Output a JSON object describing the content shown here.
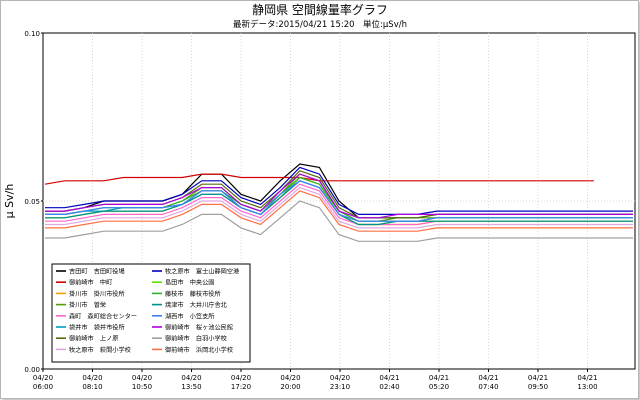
{
  "chart_data": {
    "type": "line",
    "title": "静岡県 空間線量率グラフ",
    "subtitle": "最新データ:2015/04/21 15:20　単位:μSv/h",
    "ylabel": "μ Sv/h",
    "xlabel": "",
    "ylim": [
      0.0,
      0.1
    ],
    "yticks": [
      "0.00",
      "0.05",
      "0.10"
    ],
    "xticks": [
      {
        "date": "04/20",
        "time": "06:00"
      },
      {
        "date": "04/20",
        "time": "08:10"
      },
      {
        "date": "04/20",
        "time": "10:50"
      },
      {
        "date": "04/20",
        "time": "13:50"
      },
      {
        "date": "04/20",
        "time": "17:20"
      },
      {
        "date": "04/20",
        "time": "20:00"
      },
      {
        "date": "04/20",
        "time": "23:10"
      },
      {
        "date": "04/21",
        "time": "02:40"
      },
      {
        "date": "04/21",
        "time": "05:20"
      },
      {
        "date": "04/21",
        "time": "07:40"
      },
      {
        "date": "04/21",
        "time": "09:50"
      },
      {
        "date": "04/21",
        "time": "13:00"
      }
    ],
    "grid": true,
    "legend_position": "bottom-left",
    "series": [
      {
        "name": "吉田町　吉田町役場",
        "color": "#000000",
        "values": [
          0.047,
          0.047,
          0.048,
          0.05,
          0.05,
          0.05,
          0.05,
          0.052,
          0.058,
          0.058,
          0.052,
          0.05,
          0.056,
          0.061,
          0.06,
          0.05,
          0.045,
          0.045,
          0.045,
          0.045,
          0.046,
          0.046,
          0.046,
          0.046,
          0.046,
          0.046,
          0.046,
          0.046,
          0.046,
          0.046,
          0.046
        ]
      },
      {
        "name": "御前崎市　中町",
        "color": "#d40000",
        "values": [
          0.055,
          0.056,
          0.056,
          0.056,
          0.057,
          0.057,
          0.057,
          0.057,
          0.058,
          0.058,
          0.057,
          0.057,
          0.057,
          0.057,
          0.056,
          0.056,
          0.056,
          0.056,
          0.056,
          0.056,
          0.056,
          0.056,
          0.056,
          0.056,
          0.056,
          0.056,
          0.056,
          0.056,
          0.056,
          null,
          null
        ]
      },
      {
        "name": "掛川市　掛川市役所",
        "color": "#f0a000",
        "values": [
          0.045,
          0.045,
          0.046,
          0.047,
          0.047,
          0.047,
          0.047,
          0.049,
          0.052,
          0.052,
          0.048,
          0.046,
          0.051,
          0.057,
          0.055,
          0.046,
          0.043,
          0.043,
          0.043,
          0.043,
          0.044,
          0.044,
          0.044,
          0.044,
          0.044,
          0.044,
          0.044,
          0.044,
          0.044,
          0.044,
          0.044
        ]
      },
      {
        "name": "掛川市　曽栄",
        "color": "#50a000",
        "values": [
          0.046,
          0.046,
          0.047,
          0.048,
          0.048,
          0.048,
          0.048,
          0.05,
          0.054,
          0.054,
          0.049,
          0.047,
          0.052,
          0.058,
          0.056,
          0.047,
          0.044,
          0.044,
          0.045,
          0.045,
          0.045,
          0.045,
          0.045,
          0.045,
          0.045,
          0.045,
          0.045,
          0.045,
          0.045,
          0.045,
          0.045
        ]
      },
      {
        "name": "森町　森町総合センター",
        "color": "#ff66cc",
        "values": [
          0.044,
          0.044,
          0.045,
          0.046,
          0.046,
          0.046,
          0.046,
          0.048,
          0.051,
          0.051,
          0.047,
          0.045,
          0.05,
          0.055,
          0.053,
          0.045,
          0.043,
          0.043,
          0.043,
          0.043,
          0.044,
          0.044,
          0.044,
          0.044,
          0.044,
          0.044,
          0.044,
          0.044,
          0.044,
          0.044,
          0.044
        ]
      },
      {
        "name": "袋井市　袋井市役所",
        "color": "#00a0c0",
        "values": [
          0.046,
          0.046,
          0.047,
          0.047,
          0.048,
          0.048,
          0.048,
          0.049,
          0.052,
          0.052,
          0.048,
          0.046,
          0.051,
          0.056,
          0.054,
          0.046,
          0.044,
          0.044,
          0.044,
          0.044,
          0.045,
          0.045,
          0.045,
          0.045,
          0.045,
          0.045,
          0.045,
          0.045,
          0.045,
          0.045,
          0.045
        ]
      },
      {
        "name": "御前崎市　上ノ原",
        "color": "#5a6a10",
        "values": [
          0.047,
          0.047,
          0.048,
          0.049,
          0.049,
          0.049,
          0.049,
          0.051,
          0.055,
          0.055,
          0.05,
          0.048,
          0.053,
          0.059,
          0.057,
          0.048,
          0.045,
          0.045,
          0.045,
          0.045,
          0.046,
          0.046,
          0.046,
          0.046,
          0.046,
          0.046,
          0.046,
          0.046,
          0.046,
          0.046,
          0.046
        ]
      },
      {
        "name": "牧之原市　萩間小学校",
        "color": "#e0a8e0",
        "values": [
          0.043,
          0.043,
          0.044,
          0.045,
          0.045,
          0.045,
          0.045,
          0.047,
          0.05,
          0.05,
          0.046,
          0.044,
          0.049,
          0.054,
          0.052,
          0.044,
          0.042,
          0.042,
          0.042,
          0.042,
          0.043,
          0.043,
          0.043,
          0.043,
          0.043,
          0.043,
          0.043,
          0.043,
          0.043,
          0.043,
          0.043
        ]
      },
      {
        "name": "牧之原市　富士山静岡空港",
        "color": "#0000c0",
        "values": [
          0.048,
          0.048,
          0.049,
          0.05,
          0.05,
          0.05,
          0.05,
          0.052,
          0.056,
          0.056,
          0.051,
          0.049,
          0.054,
          0.06,
          0.058,
          0.049,
          0.046,
          0.046,
          0.046,
          0.046,
          0.047,
          0.047,
          0.047,
          0.047,
          0.047,
          0.047,
          0.047,
          0.047,
          0.047,
          0.047,
          0.047
        ]
      },
      {
        "name": "島田市　中央公園",
        "color": "#60e000",
        "values": [
          0.045,
          0.045,
          0.046,
          0.047,
          0.047,
          0.047,
          0.047,
          0.049,
          0.053,
          0.053,
          0.048,
          0.046,
          0.051,
          0.057,
          0.055,
          0.046,
          0.043,
          0.043,
          0.044,
          0.044,
          0.044,
          0.044,
          0.044,
          0.044,
          0.044,
          0.044,
          0.044,
          0.044,
          0.044,
          0.044,
          0.044
        ]
      },
      {
        "name": "藤枝市　藤枝市役所",
        "color": "#30b030",
        "values": [
          0.046,
          0.046,
          0.047,
          0.048,
          0.048,
          0.048,
          0.048,
          0.05,
          0.053,
          0.053,
          0.049,
          0.047,
          0.052,
          0.057,
          0.055,
          0.047,
          0.044,
          0.044,
          0.044,
          0.044,
          0.045,
          0.045,
          0.045,
          0.045,
          0.045,
          0.045,
          0.045,
          0.045,
          0.045,
          0.045,
          0.045
        ]
      },
      {
        "name": "焼津市　大井川庁舎北",
        "color": "#009090",
        "values": [
          0.045,
          0.045,
          0.046,
          0.047,
          0.047,
          0.047,
          0.047,
          0.049,
          0.052,
          0.052,
          0.048,
          0.046,
          0.051,
          0.056,
          0.054,
          0.046,
          0.043,
          0.043,
          0.044,
          0.044,
          0.044,
          0.044,
          0.044,
          0.044,
          0.044,
          0.044,
          0.044,
          0.044,
          0.044,
          0.044,
          0.044
        ]
      },
      {
        "name": "湖西市　小笠支所",
        "color": "#4080ff",
        "values": [
          0.046,
          0.046,
          0.047,
          0.048,
          0.048,
          0.048,
          0.048,
          0.049,
          0.053,
          0.053,
          0.048,
          0.046,
          0.052,
          0.056,
          0.054,
          0.046,
          0.044,
          0.044,
          0.044,
          0.044,
          0.045,
          0.045,
          0.045,
          0.045,
          0.045,
          0.045,
          0.045,
          0.045,
          0.045,
          0.045,
          0.045
        ]
      },
      {
        "name": "御前崎市　桜ヶ池公民館",
        "color": "#b000e0",
        "values": [
          0.047,
          0.047,
          0.048,
          0.049,
          0.049,
          0.049,
          0.049,
          0.051,
          0.054,
          0.054,
          0.049,
          0.047,
          0.053,
          0.058,
          0.056,
          0.047,
          0.045,
          0.045,
          0.046,
          0.046,
          0.046,
          0.046,
          0.046,
          0.046,
          0.046,
          0.046,
          0.046,
          0.046,
          0.046,
          0.046,
          0.046
        ]
      },
      {
        "name": "御前崎市　白羽小学校",
        "color": "#a0a0a0",
        "values": [
          0.039,
          0.039,
          0.04,
          0.041,
          0.041,
          0.041,
          0.041,
          0.043,
          0.046,
          0.046,
          0.042,
          0.04,
          0.045,
          0.05,
          0.048,
          0.04,
          0.038,
          0.038,
          0.038,
          0.038,
          0.039,
          0.039,
          0.039,
          0.039,
          0.039,
          0.039,
          0.039,
          0.039,
          0.039,
          0.039,
          0.039
        ]
      },
      {
        "name": "御前崎市　浜岡北小学校",
        "color": "#ff7040",
        "values": [
          0.042,
          0.042,
          0.043,
          0.044,
          0.044,
          0.044,
          0.044,
          0.046,
          0.049,
          0.049,
          0.045,
          0.043,
          0.048,
          0.053,
          0.051,
          0.043,
          0.041,
          0.041,
          0.041,
          0.041,
          0.042,
          0.042,
          0.042,
          0.042,
          0.042,
          0.042,
          0.042,
          0.042,
          0.042,
          0.042,
          0.042
        ]
      }
    ]
  }
}
